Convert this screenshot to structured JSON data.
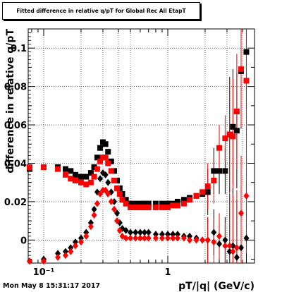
{
  "title": "Fitted difference in relative q/pT for Global Rec All EtapT",
  "timestamp": "Mon May  8 15:31:17 2017",
  "chart_data": {
    "type": "scatter",
    "title": "Fitted difference in relative q/pT for Global Rec All EtapT",
    "xlabel": "pT/|q| (GeV/c)",
    "ylabel": "difference in relative q/pT",
    "xscale": "log",
    "xlim": [
      0.075,
      5.0
    ],
    "ylim": [
      -0.012,
      0.11
    ],
    "grid": true,
    "x_tick_labels": [
      {
        "value": 0.1,
        "label": "10⁻¹"
      },
      {
        "value": 1,
        "label": "1"
      }
    ],
    "y_tick_labels": [
      {
        "value": 0,
        "label": "0"
      },
      {
        "value": 0.02,
        "label": "0.02"
      },
      {
        "value": 0.04,
        "label": "0.04"
      },
      {
        "value": 0.06,
        "label": "0.06"
      },
      {
        "value": 0.08,
        "label": "0.08"
      },
      {
        "value": 0.1,
        "label": "0.1"
      }
    ],
    "series": [
      {
        "color": "#000000",
        "marker": "square",
        "points": [
          [
            0.077,
            0.037
          ],
          [
            0.1,
            0.038
          ],
          [
            0.13,
            0.038
          ],
          [
            0.15,
            0.037
          ],
          [
            0.165,
            0.036
          ],
          [
            0.18,
            0.034
          ],
          [
            0.2,
            0.033
          ],
          [
            0.22,
            0.033
          ],
          [
            0.24,
            0.035
          ],
          [
            0.255,
            0.038
          ],
          [
            0.27,
            0.043
          ],
          [
            0.285,
            0.048
          ],
          [
            0.3,
            0.051
          ],
          [
            0.315,
            0.05
          ],
          [
            0.33,
            0.046
          ],
          [
            0.35,
            0.041
          ],
          [
            0.37,
            0.036
          ],
          [
            0.39,
            0.031
          ],
          [
            0.41,
            0.027
          ],
          [
            0.43,
            0.024
          ],
          [
            0.46,
            0.021
          ],
          [
            0.5,
            0.019
          ],
          [
            0.55,
            0.019
          ],
          [
            0.6,
            0.019
          ],
          [
            0.65,
            0.019
          ],
          [
            0.7,
            0.019
          ],
          [
            0.8,
            0.019
          ],
          [
            0.9,
            0.019
          ],
          [
            1.0,
            0.019
          ],
          [
            1.1,
            0.019
          ],
          [
            1.2,
            0.02
          ],
          [
            1.35,
            0.021
          ],
          [
            1.5,
            0.022
          ],
          [
            1.7,
            0.023
          ],
          [
            1.9,
            0.024
          ],
          [
            2.1,
            0.025
          ],
          [
            2.35,
            0.036
          ],
          [
            2.6,
            0.036
          ],
          [
            2.9,
            0.036
          ],
          [
            3.15,
            0.055
          ],
          [
            3.35,
            0.059
          ],
          [
            3.6,
            0.057
          ],
          [
            3.9,
            0.088
          ],
          [
            4.3,
            0.098
          ]
        ]
      },
      {
        "color": "#ff0000",
        "marker": "square",
        "points": [
          [
            0.077,
            0.038
          ],
          [
            0.1,
            0.038
          ],
          [
            0.13,
            0.037
          ],
          [
            0.15,
            0.034
          ],
          [
            0.165,
            0.032
          ],
          [
            0.18,
            0.031
          ],
          [
            0.2,
            0.03
          ],
          [
            0.22,
            0.029
          ],
          [
            0.24,
            0.03
          ],
          [
            0.255,
            0.033
          ],
          [
            0.27,
            0.037
          ],
          [
            0.285,
            0.041
          ],
          [
            0.3,
            0.043
          ],
          [
            0.315,
            0.043
          ],
          [
            0.33,
            0.04
          ],
          [
            0.35,
            0.036
          ],
          [
            0.37,
            0.031
          ],
          [
            0.39,
            0.027
          ],
          [
            0.41,
            0.024
          ],
          [
            0.43,
            0.021
          ],
          [
            0.46,
            0.019
          ],
          [
            0.5,
            0.017
          ],
          [
            0.55,
            0.017
          ],
          [
            0.6,
            0.017
          ],
          [
            0.65,
            0.017
          ],
          [
            0.7,
            0.017
          ],
          [
            0.8,
            0.017
          ],
          [
            0.9,
            0.017
          ],
          [
            1.0,
            0.017
          ],
          [
            1.1,
            0.018
          ],
          [
            1.2,
            0.018
          ],
          [
            1.35,
            0.019
          ],
          [
            1.5,
            0.021
          ],
          [
            1.7,
            0.023
          ],
          [
            1.9,
            0.025
          ],
          [
            2.1,
            0.028
          ],
          [
            2.35,
            0.031
          ],
          [
            2.6,
            0.048
          ],
          [
            2.9,
            0.053
          ],
          [
            3.15,
            0.055
          ],
          [
            3.35,
            0.054
          ],
          [
            3.6,
            0.067
          ],
          [
            3.9,
            0.089
          ],
          [
            4.3,
            0.083
          ]
        ]
      },
      {
        "color": "#000000",
        "marker": "diamond",
        "points": [
          [
            0.077,
            -0.011
          ],
          [
            0.1,
            -0.01
          ],
          [
            0.13,
            -0.007
          ],
          [
            0.15,
            -0.006
          ],
          [
            0.165,
            -0.004
          ],
          [
            0.18,
            -0.001
          ],
          [
            0.2,
            0.001
          ],
          [
            0.22,
            0.004
          ],
          [
            0.24,
            0.009
          ],
          [
            0.255,
            0.016
          ],
          [
            0.27,
            0.025
          ],
          [
            0.285,
            0.032
          ],
          [
            0.3,
            0.035
          ],
          [
            0.315,
            0.034
          ],
          [
            0.33,
            0.03
          ],
          [
            0.35,
            0.025
          ],
          [
            0.37,
            0.02
          ],
          [
            0.39,
            0.014
          ],
          [
            0.41,
            0.009
          ],
          [
            0.43,
            0.006
          ],
          [
            0.46,
            0.005
          ],
          [
            0.5,
            0.004
          ],
          [
            0.55,
            0.004
          ],
          [
            0.6,
            0.004
          ],
          [
            0.65,
            0.004
          ],
          [
            0.7,
            0.004
          ],
          [
            0.8,
            0.003
          ],
          [
            0.9,
            0.003
          ],
          [
            1.0,
            0.003
          ],
          [
            1.1,
            0.003
          ],
          [
            1.2,
            0.003
          ],
          [
            1.35,
            0.002
          ],
          [
            1.5,
            0.002
          ],
          [
            1.7,
            0.001
          ],
          [
            1.9,
            0.0
          ],
          [
            2.1,
            0.0
          ],
          [
            2.35,
            0.004
          ],
          [
            2.6,
            -0.002
          ],
          [
            2.9,
            0.0
          ],
          [
            3.15,
            -0.006
          ],
          [
            3.35,
            -0.003
          ],
          [
            3.6,
            -0.009
          ],
          [
            3.9,
            -0.004
          ],
          [
            4.3,
            0.001
          ]
        ]
      },
      {
        "color": "#ff0000",
        "marker": "diamond",
        "points": [
          [
            0.077,
            -0.011
          ],
          [
            0.1,
            -0.011
          ],
          [
            0.13,
            -0.009
          ],
          [
            0.15,
            -0.008
          ],
          [
            0.165,
            -0.006
          ],
          [
            0.18,
            -0.003
          ],
          [
            0.2,
            -0.001
          ],
          [
            0.22,
            0.002
          ],
          [
            0.24,
            0.007
          ],
          [
            0.255,
            0.013
          ],
          [
            0.27,
            0.019
          ],
          [
            0.285,
            0.024
          ],
          [
            0.3,
            0.026
          ],
          [
            0.315,
            0.026
          ],
          [
            0.33,
            0.024
          ],
          [
            0.35,
            0.02
          ],
          [
            0.37,
            0.016
          ],
          [
            0.39,
            0.01
          ],
          [
            0.41,
            0.005
          ],
          [
            0.43,
            0.002
          ],
          [
            0.46,
            0.001
          ],
          [
            0.5,
            0.001
          ],
          [
            0.55,
            0.001
          ],
          [
            0.6,
            0.001
          ],
          [
            0.65,
            0.001
          ],
          [
            0.7,
            0.001
          ],
          [
            0.8,
            0.001
          ],
          [
            0.9,
            0.001
          ],
          [
            1.0,
            0.001
          ],
          [
            1.1,
            0.001
          ],
          [
            1.2,
            0.001
          ],
          [
            1.35,
            0.001
          ],
          [
            1.5,
            0.0
          ],
          [
            1.7,
            0.0
          ],
          [
            1.9,
            0.0
          ],
          [
            2.1,
            0.0
          ],
          [
            2.35,
            -0.001
          ],
          [
            2.6,
            0.002
          ],
          [
            2.9,
            -0.003
          ],
          [
            3.15,
            -0.003
          ],
          [
            3.35,
            -0.006
          ],
          [
            3.6,
            -0.004
          ],
          [
            3.9,
            0.014
          ],
          [
            4.3,
            0.023
          ]
        ]
      }
    ]
  }
}
